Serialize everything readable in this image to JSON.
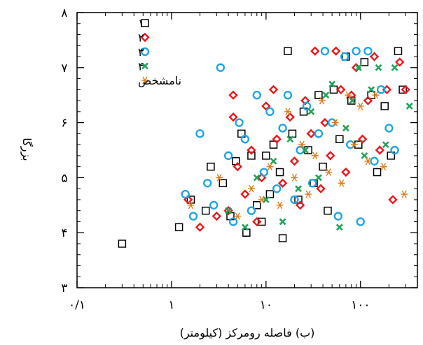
{
  "chart_data": {
    "type": "scatter",
    "title": "",
    "xlabel": "(ب) فاصله رومرکز (کیلومتر)",
    "ylabel": "بزرگا",
    "x_scale": "log",
    "xlim": [
      0.1,
      400
    ],
    "ylim": [
      3,
      8
    ],
    "x_ticks": [
      {
        "value": 0.1,
        "label": "۰/۱"
      },
      {
        "value": 1,
        "label": "۱"
      },
      {
        "value": 10,
        "label": "۱۰"
      },
      {
        "value": 100,
        "label": "۱۰۰"
      }
    ],
    "y_ticks": [
      {
        "value": 3,
        "label": "۳"
      },
      {
        "value": 4,
        "label": "۴"
      },
      {
        "value": 5,
        "label": "۵"
      },
      {
        "value": 6,
        "label": "۶"
      },
      {
        "value": 7,
        "label": "۷"
      },
      {
        "value": 8,
        "label": "۸"
      }
    ],
    "grid": false,
    "legend_position": "top-left",
    "series": [
      {
        "name": "۱",
        "marker": "square",
        "color": "#000000",
        "points": [
          [
            0.3,
            3.8
          ],
          [
            1.2,
            4.1
          ],
          [
            1.6,
            4.6
          ],
          [
            2.3,
            4.4
          ],
          [
            2.6,
            5.2
          ],
          [
            3.5,
            4.9
          ],
          [
            4.2,
            4.3
          ],
          [
            4.8,
            5.3
          ],
          [
            5.5,
            5.8
          ],
          [
            6.2,
            4.0
          ],
          [
            7.0,
            5.4
          ],
          [
            8.0,
            4.5
          ],
          [
            9.0,
            4.2
          ],
          [
            10.0,
            5.4
          ],
          [
            11.0,
            4.7
          ],
          [
            12.0,
            5.6
          ],
          [
            14.0,
            5.1
          ],
          [
            15.0,
            3.9
          ],
          [
            17.0,
            7.3
          ],
          [
            19.0,
            5.8
          ],
          [
            22.0,
            4.6
          ],
          [
            25.0,
            6.2
          ],
          [
            28.0,
            5.5
          ],
          [
            32.0,
            4.9
          ],
          [
            36.0,
            6.5
          ],
          [
            40.0,
            5.2
          ],
          [
            45.0,
            4.4
          ],
          [
            52.0,
            6.6
          ],
          [
            60.0,
            5.7
          ],
          [
            70.0,
            7.2
          ],
          [
            80.0,
            6.4
          ],
          [
            95.0,
            5.6
          ],
          [
            110.0,
            7.1
          ],
          [
            130.0,
            6.5
          ],
          [
            150.0,
            5.1
          ],
          [
            180.0,
            6.3
          ],
          [
            210.0,
            5.4
          ],
          [
            250.0,
            7.3
          ],
          [
            280.0,
            6.6
          ]
        ]
      },
      {
        "name": "۲",
        "marker": "diamond",
        "color": "#e8191e",
        "points": [
          [
            1.5,
            4.6
          ],
          [
            2.0,
            4.1
          ],
          [
            3.0,
            4.3
          ],
          [
            4.0,
            4.4
          ],
          [
            4.5,
            6.5
          ],
          [
            4.5,
            6.1
          ],
          [
            5.0,
            5.2
          ],
          [
            6.0,
            4.7
          ],
          [
            7.0,
            5.5
          ],
          [
            8.0,
            4.2
          ],
          [
            9.0,
            5.0
          ],
          [
            10.0,
            6.3
          ],
          [
            12.0,
            6.6
          ],
          [
            13.0,
            5.7
          ],
          [
            15.0,
            4.9
          ],
          [
            18.0,
            6.1
          ],
          [
            20.0,
            5.3
          ],
          [
            23.0,
            4.5
          ],
          [
            26.0,
            6.4
          ],
          [
            30.0,
            5.8
          ],
          [
            33.0,
            7.3
          ],
          [
            38.0,
            4.8
          ],
          [
            42.0,
            6.0
          ],
          [
            48.0,
            5.4
          ],
          [
            55.0,
            7.3
          ],
          [
            62.0,
            6.6
          ],
          [
            70.0,
            5.1
          ],
          [
            80.0,
            6.5
          ],
          [
            90.0,
            7.0
          ],
          [
            105.0,
            5.7
          ],
          [
            120.0,
            6.4
          ],
          [
            140.0,
            7.2
          ],
          [
            160.0,
            5.5
          ],
          [
            190.0,
            6.6
          ],
          [
            220.0,
            4.6
          ],
          [
            260.0,
            7.1
          ],
          [
            300.0,
            6.6
          ]
        ]
      },
      {
        "name": "۳",
        "marker": "circle",
        "color": "#1fa5e6",
        "points": [
          [
            1.4,
            4.7
          ],
          [
            1.7,
            4.3
          ],
          [
            2.0,
            5.8
          ],
          [
            2.4,
            4.9
          ],
          [
            2.8,
            4.5
          ],
          [
            3.3,
            7.0
          ],
          [
            4.0,
            5.4
          ],
          [
            4.5,
            4.2
          ],
          [
            5.2,
            6.0
          ],
          [
            6.0,
            5.7
          ],
          [
            7.0,
            4.4
          ],
          [
            8.0,
            6.5
          ],
          [
            9.5,
            5.1
          ],
          [
            11.0,
            6.2
          ],
          [
            13.0,
            4.8
          ],
          [
            15.0,
            5.9
          ],
          [
            17.0,
            6.5
          ],
          [
            20.0,
            4.6
          ],
          [
            23.0,
            5.5
          ],
          [
            27.0,
            6.3
          ],
          [
            31.0,
            4.9
          ],
          [
            36.0,
            5.8
          ],
          [
            42.0,
            7.3
          ],
          [
            50.0,
            6.0
          ],
          [
            58.0,
            4.3
          ],
          [
            68.0,
            7.2
          ],
          [
            78.0,
            5.6
          ],
          [
            90.0,
            7.3
          ],
          [
            100.0,
            4.2
          ],
          [
            120.0,
            7.3
          ],
          [
            140.0,
            5.3
          ],
          [
            165.0,
            6.6
          ],
          [
            200.0,
            5.9
          ],
          [
            230.0,
            5.5
          ]
        ]
      },
      {
        "name": "۴",
        "marker": "x",
        "color": "#22a25a",
        "points": [
          [
            4.0,
            4.4
          ],
          [
            6.0,
            4.1
          ],
          [
            8.0,
            5.0
          ],
          [
            10.0,
            4.6
          ],
          [
            12.0,
            5.3
          ],
          [
            15.0,
            4.2
          ],
          [
            18.0,
            5.7
          ],
          [
            22.0,
            4.8
          ],
          [
            26.0,
            5.5
          ],
          [
            30.0,
            6.2
          ],
          [
            36.0,
            5.0
          ],
          [
            43.0,
            6.5
          ],
          [
            50.0,
            6.7
          ],
          [
            60.0,
            4.1
          ],
          [
            70.0,
            5.9
          ],
          [
            82.0,
            6.4
          ],
          [
            95.0,
            7.0
          ],
          [
            110.0,
            5.4
          ],
          [
            130.0,
            6.6
          ],
          [
            155.0,
            7.0
          ],
          [
            185.0,
            5.6
          ],
          [
            230.0,
            7.0
          ],
          [
            330.0,
            6.3
          ]
        ]
      },
      {
        "name": "نامشخص",
        "marker": "asterisk",
        "color": "#e07b1d",
        "points": [
          [
            1.6,
            4.5
          ],
          [
            3.2,
            5.0
          ],
          [
            5.0,
            4.3
          ],
          [
            7.0,
            4.8
          ],
          [
            9.0,
            4.6
          ],
          [
            11.0,
            5.2
          ],
          [
            14.0,
            4.5
          ],
          [
            17.0,
            6.2
          ],
          [
            20.0,
            5.0
          ],
          [
            24.0,
            5.6
          ],
          [
            28.0,
            4.7
          ],
          [
            33.0,
            5.4
          ],
          [
            39.0,
            6.4
          ],
          [
            46.0,
            5.1
          ],
          [
            54.0,
            6.0
          ],
          [
            63.0,
            4.9
          ],
          [
            74.0,
            6.5
          ],
          [
            86.0,
            5.6
          ],
          [
            100.0,
            6.3
          ],
          [
            120.0,
            5.3
          ],
          [
            145.0,
            6.5
          ],
          [
            175.0,
            5.2
          ],
          [
            290.0,
            4.7
          ]
        ]
      }
    ]
  }
}
